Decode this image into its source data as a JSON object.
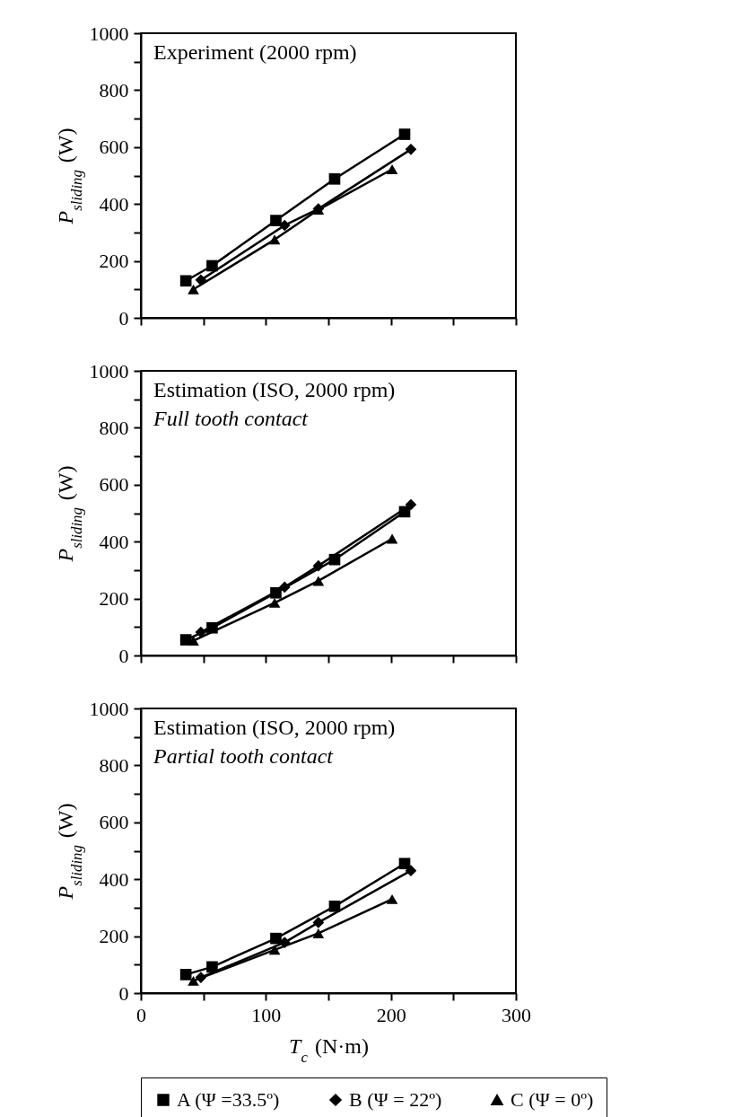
{
  "chart_data": [
    {
      "type": "line",
      "title": "Experiment (2000 rpm)",
      "ylabel": "P$_{sliding}$ (W)",
      "xlim": [
        0,
        300
      ],
      "ylim": [
        0,
        1000
      ],
      "xticks": [
        0,
        {
          "value": 50,
          "label": null
        },
        100,
        {
          "value": 150,
          "label": null
        },
        200,
        {
          "value": 250,
          "label": null
        },
        300
      ],
      "yticks": [
        0,
        {
          "value": 100,
          "label": null
        },
        200,
        {
          "value": 300,
          "label": null
        },
        400,
        {
          "value": 500,
          "label": null
        },
        600,
        {
          "value": 700,
          "label": null
        },
        800,
        {
          "value": 900,
          "label": null
        },
        1000
      ],
      "tick_labels": "y",
      "grid": false,
      "legend": "bottom",
      "series": [
        {
          "name": "A (Ψ =33.5º)",
          "color": "#000000",
          "marker": "square",
          "x": [
            36,
            57,
            108,
            155,
            211
          ],
          "values": [
            130,
            183,
            342,
            488,
            645
          ]
        },
        {
          "name": "B (Ψ = 22º)",
          "color": "#000000",
          "marker": "diamond",
          "x": [
            48,
            115,
            142,
            216
          ],
          "values": [
            133,
            325,
            383,
            592
          ]
        },
        {
          "name": "C (Ψ = 0º)",
          "color": "#000000",
          "marker": "triangle",
          "x": [
            42,
            107,
            142,
            201
          ],
          "values": [
            100,
            275,
            380,
            522
          ]
        }
      ]
    },
    {
      "type": "line",
      "title": "Estimation (ISO, 2000 rpm)",
      "subtitle": "Full tooth contact",
      "ylabel": "P$_{sliding}$ (W)",
      "xlim": [
        0,
        300
      ],
      "ylim": [
        0,
        1000
      ],
      "xticks": [
        0,
        {
          "value": 50,
          "label": null
        },
        100,
        {
          "value": 150,
          "label": null
        },
        200,
        {
          "value": 250,
          "label": null
        },
        300
      ],
      "yticks": [
        0,
        {
          "value": 100,
          "label": null
        },
        200,
        {
          "value": 300,
          "label": null
        },
        400,
        {
          "value": 500,
          "label": null
        },
        600,
        {
          "value": 700,
          "label": null
        },
        800,
        {
          "value": 900,
          "label": null
        },
        1000
      ],
      "tick_labels": "y",
      "grid": false,
      "legend": "bottom",
      "series": [
        {
          "name": "A (Ψ =33.5º)",
          "color": "#000000",
          "marker": "square",
          "x": [
            36,
            57,
            108,
            155,
            211
          ],
          "values": [
            55,
            97,
            220,
            337,
            505
          ]
        },
        {
          "name": "B (Ψ = 22º)",
          "color": "#000000",
          "marker": "diamond",
          "x": [
            48,
            115,
            142,
            216
          ],
          "values": [
            82,
            240,
            315,
            530
          ]
        },
        {
          "name": "C (Ψ = 0º)",
          "color": "#000000",
          "marker": "triangle",
          "x": [
            42,
            107,
            142,
            201
          ],
          "values": [
            52,
            185,
            262,
            410
          ]
        }
      ]
    },
    {
      "type": "line",
      "title": "Estimation (ISO, 2000 rpm)",
      "subtitle": "Partial tooth contact",
      "xlabel": "T$_{c}$ (N·m)",
      "ylabel": "P$_{sliding}$ (W)",
      "xlim": [
        0,
        300
      ],
      "ylim": [
        0,
        1000
      ],
      "xticks": [
        0,
        {
          "value": 50,
          "label": null
        },
        100,
        {
          "value": 150,
          "label": null
        },
        200,
        {
          "value": 250,
          "label": null
        },
        300
      ],
      "yticks": [
        0,
        {
          "value": 100,
          "label": null
        },
        200,
        {
          "value": 300,
          "label": null
        },
        400,
        {
          "value": 500,
          "label": null
        },
        600,
        {
          "value": 700,
          "label": null
        },
        800,
        {
          "value": 900,
          "label": null
        },
        1000
      ],
      "grid": false,
      "legend": "bottom",
      "series": [
        {
          "name": "A (Ψ =33.5º)",
          "color": "#000000",
          "marker": "square",
          "x": [
            36,
            57,
            108,
            155,
            211
          ],
          "values": [
            65,
            92,
            192,
            305,
            455
          ]
        },
        {
          "name": "B (Ψ = 22º)",
          "color": "#000000",
          "marker": "diamond",
          "x": [
            48,
            115,
            142,
            216
          ],
          "values": [
            55,
            178,
            248,
            430
          ]
        },
        {
          "name": "C (Ψ = 0º)",
          "color": "#000000",
          "marker": "triangle",
          "x": [
            42,
            107,
            142,
            201
          ],
          "values": [
            43,
            152,
            210,
            330
          ]
        }
      ]
    }
  ]
}
